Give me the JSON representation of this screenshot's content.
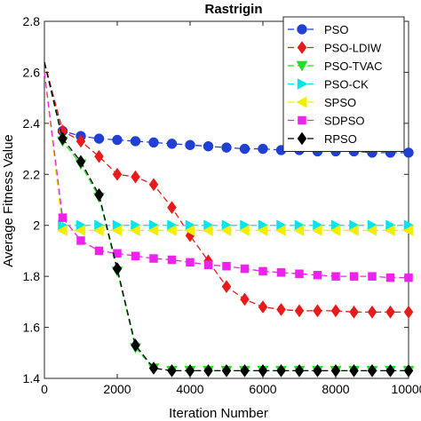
{
  "chart_data": {
    "type": "line",
    "title": "Rastrigin",
    "xlabel": "Iteration Number",
    "ylabel": "Average Fitness Value",
    "xlim": [
      0,
      10000
    ],
    "ylim": [
      1.4,
      2.8
    ],
    "xticks": [
      0,
      2000,
      4000,
      6000,
      8000,
      10000
    ],
    "yticks": [
      1.4,
      1.6,
      1.8,
      2.0,
      2.2,
      2.4,
      2.6,
      2.8
    ],
    "xtick_labels": [
      "0",
      "2000",
      "4000",
      "6000",
      "8000",
      "10000"
    ],
    "ytick_labels": [
      "1.4",
      "1.6",
      "1.8",
      "2",
      "2.2",
      "2.4",
      "2.6",
      "2.8"
    ],
    "grid": false,
    "legend_position": "top-right",
    "x": [
      0,
      500,
      1000,
      1500,
      2000,
      2500,
      3000,
      3500,
      4000,
      4500,
      5000,
      5500,
      6000,
      6500,
      7000,
      7500,
      8000,
      8500,
      9000,
      9500,
      10000
    ],
    "series": [
      {
        "name": "PSO",
        "color": "#1f3fd6",
        "marker": "circle",
        "values": [
          2.64,
          2.37,
          2.35,
          2.34,
          2.335,
          2.33,
          2.325,
          2.32,
          2.315,
          2.31,
          2.305,
          2.3,
          2.3,
          2.295,
          2.295,
          2.29,
          2.29,
          2.29,
          2.285,
          2.285,
          2.285
        ]
      },
      {
        "name": "PSO-LDIW",
        "color": "#e81a1a",
        "marker": "diamond",
        "values": [
          2.64,
          2.37,
          2.33,
          2.27,
          2.2,
          2.19,
          2.16,
          2.07,
          1.96,
          1.86,
          1.76,
          1.71,
          1.68,
          1.67,
          1.665,
          1.665,
          1.665,
          1.66,
          1.66,
          1.66,
          1.66
        ]
      },
      {
        "name": "PSO-TVAC",
        "color": "#22dd22",
        "marker": "triangle-down",
        "values": [
          2.64,
          2.33,
          2.24,
          2.11,
          1.82,
          1.52,
          1.44,
          1.43,
          1.43,
          1.43,
          1.43,
          1.43,
          1.43,
          1.43,
          1.43,
          1.43,
          1.43,
          1.43,
          1.43,
          1.43,
          1.43
        ]
      },
      {
        "name": "PSO-CK",
        "color": "#00e5ee",
        "marker": "triangle-right",
        "values": [
          2.6,
          2.0,
          2.0,
          2.0,
          2.0,
          2.0,
          2.0,
          2.0,
          2.0,
          2.0,
          2.0,
          2.0,
          2.0,
          2.0,
          2.0,
          2.0,
          2.0,
          2.0,
          2.0,
          2.0,
          2.0
        ]
      },
      {
        "name": "SPSO",
        "color": "#f2ee00",
        "marker": "triangle-left",
        "values": [
          2.6,
          1.98,
          1.98,
          1.98,
          1.98,
          1.98,
          1.98,
          1.98,
          1.98,
          1.98,
          1.98,
          1.98,
          1.98,
          1.98,
          1.98,
          1.98,
          1.98,
          1.98,
          1.98,
          1.98,
          1.98
        ]
      },
      {
        "name": "SDPSO",
        "color": "#ee22ee",
        "marker": "square",
        "values": [
          2.6,
          2.03,
          1.94,
          1.9,
          1.89,
          1.88,
          1.87,
          1.865,
          1.855,
          1.845,
          1.84,
          1.83,
          1.82,
          1.815,
          1.81,
          1.805,
          1.8,
          1.8,
          1.8,
          1.795,
          1.795
        ]
      },
      {
        "name": "RPSO",
        "color": "#000000",
        "marker": "diamond",
        "values": [
          2.64,
          2.34,
          2.25,
          2.12,
          1.83,
          1.53,
          1.44,
          1.43,
          1.43,
          1.43,
          1.43,
          1.43,
          1.43,
          1.43,
          1.43,
          1.43,
          1.43,
          1.43,
          1.43,
          1.43,
          1.43
        ]
      }
    ]
  }
}
